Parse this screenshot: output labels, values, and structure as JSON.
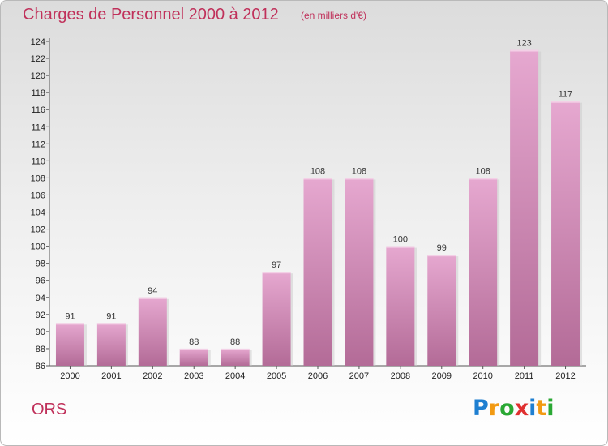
{
  "header": {
    "title": "Charges de Personnel 2000 à 2012",
    "unit": "(en milliers d'€)"
  },
  "footer": {
    "city": "ORS",
    "logo": [
      "P",
      "r",
      "o",
      "x",
      "i",
      "t",
      "i"
    ],
    "logo_colors": [
      "#1e7fd1",
      "#f29a12",
      "#2aa834",
      "#e03030",
      "#1e7fd1",
      "#f29a12",
      "#2aa834"
    ]
  },
  "colors": {
    "title": "#c0305a",
    "bar_top": "#e6a8d0",
    "bar_bottom": "#b36b97"
  },
  "chart_data": {
    "type": "bar",
    "title": "Charges de Personnel 2000 à 2012",
    "categories": [
      "2000",
      "2001",
      "2002",
      "2003",
      "2004",
      "2005",
      "2006",
      "2007",
      "2008",
      "2009",
      "2010",
      "2011",
      "2012"
    ],
    "values": [
      91,
      91,
      94,
      88,
      88,
      97,
      108,
      108,
      100,
      99,
      108,
      123,
      117
    ],
    "ylim": [
      86,
      124
    ],
    "yticks": [
      86,
      88,
      90,
      92,
      94,
      96,
      98,
      100,
      102,
      104,
      106,
      108,
      110,
      112,
      114,
      116,
      118,
      120,
      122,
      124
    ],
    "grid": false,
    "legend": "none"
  }
}
